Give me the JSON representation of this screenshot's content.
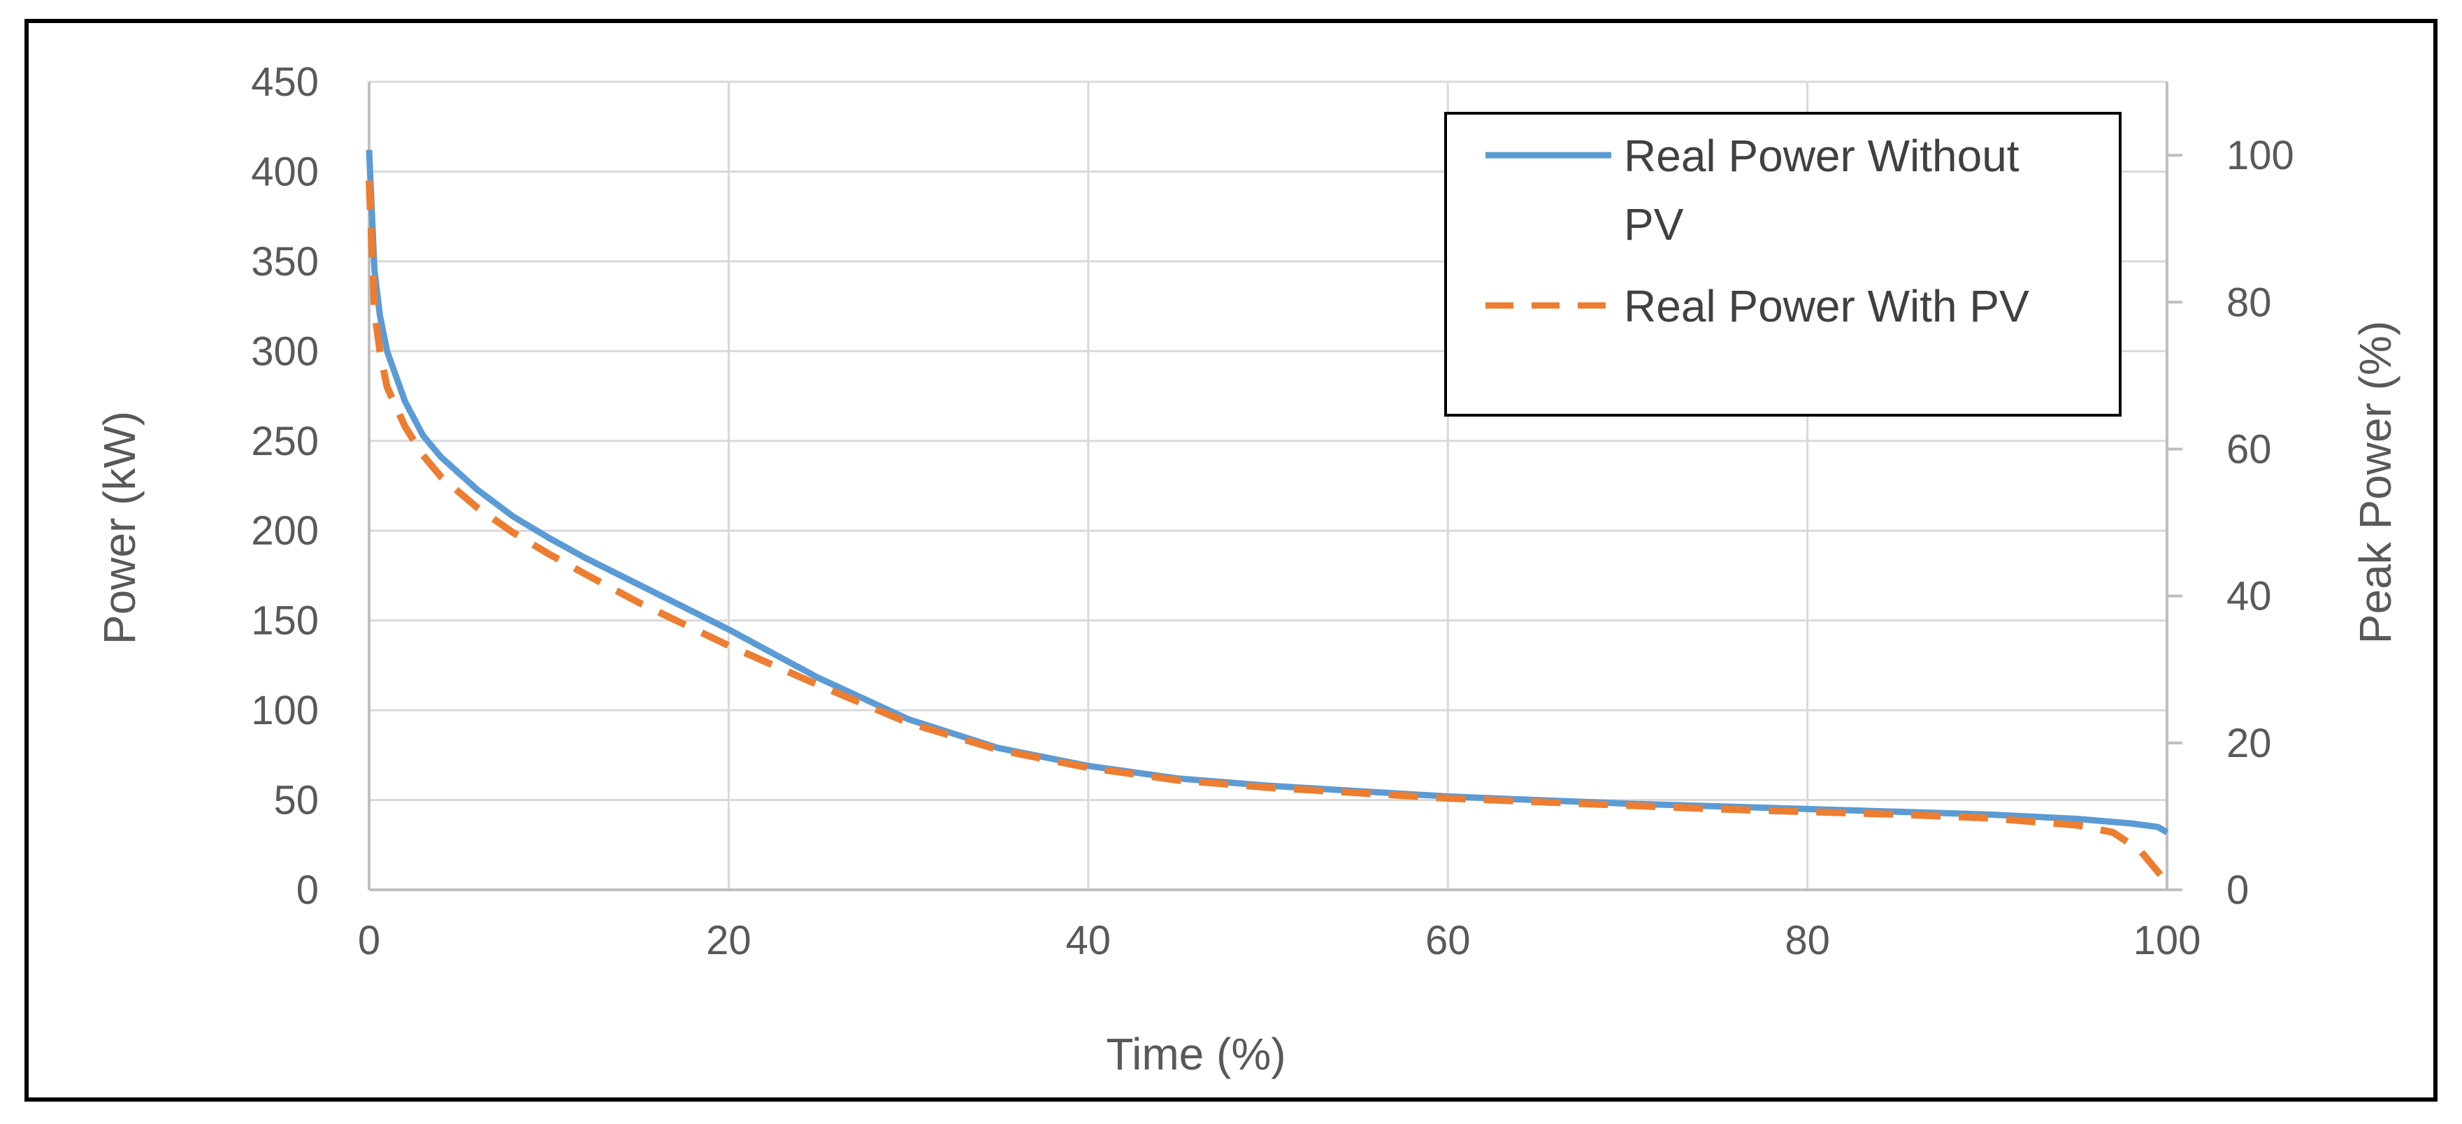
{
  "chart_data": {
    "type": "line",
    "title": "",
    "xlabel": "Time (%)",
    "ylabel": "Power (kW)",
    "y2label": "Peak Power (%)",
    "xlim": [
      0,
      100
    ],
    "ylim": [
      0,
      450
    ],
    "y2lim": [
      0,
      110
    ],
    "x_ticks": [
      0,
      20,
      40,
      60,
      80,
      100
    ],
    "y_ticks": [
      0,
      50,
      100,
      150,
      200,
      250,
      300,
      350,
      400,
      450
    ],
    "y2_ticks": [
      0,
      20,
      40,
      60,
      80,
      100
    ],
    "grid": true,
    "legend_position": "top-right",
    "series": [
      {
        "name": "Real Power Without PV",
        "legend_lines": [
          "Real Power Without",
          "PV"
        ],
        "style": "solid",
        "color": "#5B9BD5",
        "x": [
          0,
          0.3,
          0.6,
          1,
          2,
          3,
          4,
          6,
          8,
          10,
          12,
          15,
          20,
          25,
          30,
          35,
          40,
          45,
          50,
          55,
          60,
          65,
          70,
          75,
          80,
          85,
          90,
          95,
          98,
          99.5,
          100
        ],
        "y": [
          412,
          345,
          320,
          300,
          272,
          253,
          241,
          223,
          208,
          196,
          185,
          170,
          145,
          118,
          95,
          79,
          69,
          62,
          58,
          55,
          52,
          50,
          48,
          46.5,
          45,
          43.5,
          42,
          39.5,
          37,
          35,
          32
        ]
      },
      {
        "name": "Real Power With PV",
        "legend_lines": [
          "Real Power With PV"
        ],
        "style": "dashed",
        "color": "#ED7D31",
        "x": [
          0,
          0.3,
          0.6,
          1,
          2,
          3,
          4,
          6,
          8,
          10,
          12,
          15,
          20,
          25,
          30,
          35,
          40,
          45,
          50,
          55,
          60,
          65,
          70,
          75,
          80,
          85,
          90,
          95,
          97,
          98.5,
          99.5,
          100
        ],
        "y": [
          395,
          322,
          300,
          280,
          258,
          242,
          230,
          213,
          199,
          187,
          176,
          160,
          136,
          114,
          93,
          78,
          68,
          61,
          57,
          54,
          51,
          49,
          47,
          45,
          43.5,
          42,
          40,
          36,
          32,
          22,
          10,
          4
        ]
      }
    ]
  }
}
